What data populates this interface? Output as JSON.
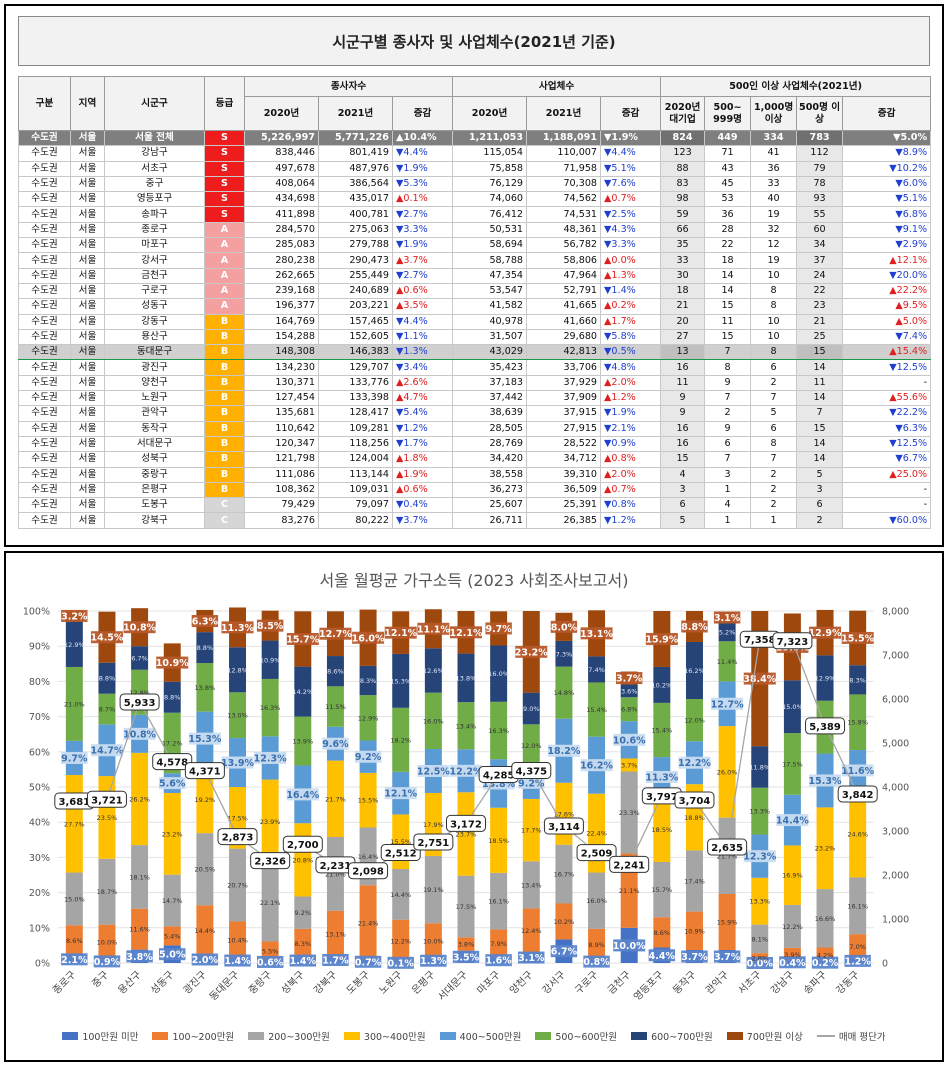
{
  "table": {
    "title": "시군구별 종사자 및 사업체수(2021년 기준)",
    "headers": {
      "region": "구분",
      "area": "지역",
      "district": "시군구",
      "grade": "등급",
      "workers": "종사자수",
      "businesses": "사업체수",
      "large": "500인 이상 사업체수(2021년)",
      "y2020": "2020년",
      "y2021": "2021년",
      "change": "증감",
      "large_2020": "2020년 대기업",
      "large_500": "500~ 999명",
      "large_1000": "1,000명 이상",
      "large_500plus": "500명 이상",
      "large_change": "증감"
    },
    "grade_colors": {
      "S": "#ee1c1c",
      "A": "#f4a0a0",
      "B": "#ffb000",
      "C": "#d6d6d6"
    },
    "rows": [
      {
        "region": "수도권",
        "area": "서울",
        "district": "서울 전체",
        "grade": "S",
        "w2020": "5,226,997",
        "w2021": "5,771,226",
        "wchg": "▲10.4%",
        "wdir": "up",
        "b2020": "1,211,053",
        "b2021": "1,188,091",
        "bchg": "▼1.9%",
        "bdir": "dn",
        "l2020": "824",
        "l500": "449",
        "l1000": "334",
        "l500p": "783",
        "lchg": "▼5.0%",
        "ldir": "dn",
        "total": true
      },
      {
        "region": "수도권",
        "area": "서울",
        "district": "강남구",
        "grade": "S",
        "w2020": "838,446",
        "w2021": "801,419",
        "wchg": "▼4.4%",
        "wdir": "dn",
        "b2020": "115,054",
        "b2021": "110,007",
        "bchg": "▼4.4%",
        "bdir": "dn",
        "l2020": "123",
        "l500": "71",
        "l1000": "41",
        "l500p": "112",
        "lchg": "▼8.9%",
        "ldir": "dn"
      },
      {
        "region": "수도권",
        "area": "서울",
        "district": "서초구",
        "grade": "S",
        "w2020": "497,678",
        "w2021": "487,976",
        "wchg": "▼1.9%",
        "wdir": "dn",
        "b2020": "75,858",
        "b2021": "71,958",
        "bchg": "▼5.1%",
        "bdir": "dn",
        "l2020": "88",
        "l500": "43",
        "l1000": "36",
        "l500p": "79",
        "lchg": "▼10.2%",
        "ldir": "dn"
      },
      {
        "region": "수도권",
        "area": "서울",
        "district": "중구",
        "grade": "S",
        "w2020": "408,064",
        "w2021": "386,564",
        "wchg": "▼5.3%",
        "wdir": "dn",
        "b2020": "76,129",
        "b2021": "70,308",
        "bchg": "▼7.6%",
        "bdir": "dn",
        "l2020": "83",
        "l500": "45",
        "l1000": "33",
        "l500p": "78",
        "lchg": "▼6.0%",
        "ldir": "dn"
      },
      {
        "region": "수도권",
        "area": "서울",
        "district": "영등포구",
        "grade": "S",
        "w2020": "434,698",
        "w2021": "435,017",
        "wchg": "▲0.1%",
        "wdir": "up",
        "b2020": "74,060",
        "b2021": "74,562",
        "bchg": "▲0.7%",
        "bdir": "up",
        "l2020": "98",
        "l500": "53",
        "l1000": "40",
        "l500p": "93",
        "lchg": "▼5.1%",
        "ldir": "dn"
      },
      {
        "region": "수도권",
        "area": "서울",
        "district": "송파구",
        "grade": "S",
        "w2020": "411,898",
        "w2021": "400,781",
        "wchg": "▼2.7%",
        "wdir": "dn",
        "b2020": "76,412",
        "b2021": "74,531",
        "bchg": "▼2.5%",
        "bdir": "dn",
        "l2020": "59",
        "l500": "36",
        "l1000": "19",
        "l500p": "55",
        "lchg": "▼6.8%",
        "ldir": "dn"
      },
      {
        "region": "수도권",
        "area": "서울",
        "district": "종로구",
        "grade": "A",
        "w2020": "284,570",
        "w2021": "275,063",
        "wchg": "▼3.3%",
        "wdir": "dn",
        "b2020": "50,531",
        "b2021": "48,361",
        "bchg": "▼4.3%",
        "bdir": "dn",
        "l2020": "66",
        "l500": "28",
        "l1000": "32",
        "l500p": "60",
        "lchg": "▼9.1%",
        "ldir": "dn"
      },
      {
        "region": "수도권",
        "area": "서울",
        "district": "마포구",
        "grade": "A",
        "w2020": "285,083",
        "w2021": "279,788",
        "wchg": "▼1.9%",
        "wdir": "dn",
        "b2020": "58,694",
        "b2021": "56,782",
        "bchg": "▼3.3%",
        "bdir": "dn",
        "l2020": "35",
        "l500": "22",
        "l1000": "12",
        "l500p": "34",
        "lchg": "▼2.9%",
        "ldir": "dn"
      },
      {
        "region": "수도권",
        "area": "서울",
        "district": "강서구",
        "grade": "A",
        "w2020": "280,238",
        "w2021": "290,473",
        "wchg": "▲3.7%",
        "wdir": "up",
        "b2020": "58,788",
        "b2021": "58,806",
        "bchg": "▲0.0%",
        "bdir": "up",
        "l2020": "33",
        "l500": "18",
        "l1000": "19",
        "l500p": "37",
        "lchg": "▲12.1%",
        "ldir": "up"
      },
      {
        "region": "수도권",
        "area": "서울",
        "district": "금천구",
        "grade": "A",
        "w2020": "262,665",
        "w2021": "255,449",
        "wchg": "▼2.7%",
        "wdir": "dn",
        "b2020": "47,354",
        "b2021": "47,964",
        "bchg": "▲1.3%",
        "bdir": "up",
        "l2020": "30",
        "l500": "14",
        "l1000": "10",
        "l500p": "24",
        "lchg": "▼20.0%",
        "ldir": "dn"
      },
      {
        "region": "수도권",
        "area": "서울",
        "district": "구로구",
        "grade": "A",
        "w2020": "239,168",
        "w2021": "240,689",
        "wchg": "▲0.6%",
        "wdir": "up",
        "b2020": "53,547",
        "b2021": "52,791",
        "bchg": "▼1.4%",
        "bdir": "dn",
        "l2020": "18",
        "l500": "14",
        "l1000": "8",
        "l500p": "22",
        "lchg": "▲22.2%",
        "ldir": "up"
      },
      {
        "region": "수도권",
        "area": "서울",
        "district": "성동구",
        "grade": "A",
        "w2020": "196,377",
        "w2021": "203,221",
        "wchg": "▲3.5%",
        "wdir": "up",
        "b2020": "41,582",
        "b2021": "41,665",
        "bchg": "▲0.2%",
        "bdir": "up",
        "l2020": "21",
        "l500": "15",
        "l1000": "8",
        "l500p": "23",
        "lchg": "▲9.5%",
        "ldir": "up"
      },
      {
        "region": "수도권",
        "area": "서울",
        "district": "강동구",
        "grade": "B",
        "w2020": "164,769",
        "w2021": "157,465",
        "wchg": "▼4.4%",
        "wdir": "dn",
        "b2020": "40,978",
        "b2021": "41,660",
        "bchg": "▲1.7%",
        "bdir": "up",
        "l2020": "20",
        "l500": "11",
        "l1000": "10",
        "l500p": "21",
        "lchg": "▲5.0%",
        "ldir": "up"
      },
      {
        "region": "수도권",
        "area": "서울",
        "district": "용산구",
        "grade": "B",
        "w2020": "154,288",
        "w2021": "152,605",
        "wchg": "▼1.1%",
        "wdir": "dn",
        "b2020": "31,507",
        "b2021": "29,680",
        "bchg": "▼5.8%",
        "bdir": "dn",
        "l2020": "27",
        "l500": "15",
        "l1000": "10",
        "l500p": "25",
        "lchg": "▼7.4%",
        "ldir": "dn"
      },
      {
        "region": "수도권",
        "area": "서울",
        "district": "동대문구",
        "grade": "B",
        "w2020": "148,308",
        "w2021": "146,383",
        "wchg": "▼1.3%",
        "wdir": "dn",
        "b2020": "43,029",
        "b2021": "42,813",
        "bchg": "▼0.5%",
        "bdir": "dn",
        "l2020": "13",
        "l500": "7",
        "l1000": "8",
        "l500p": "15",
        "lchg": "▲15.4%",
        "ldir": "up",
        "highlight": true
      },
      {
        "region": "수도권",
        "area": "서울",
        "district": "광진구",
        "grade": "B",
        "w2020": "134,230",
        "w2021": "129,707",
        "wchg": "▼3.4%",
        "wdir": "dn",
        "b2020": "35,423",
        "b2021": "33,706",
        "bchg": "▼4.8%",
        "bdir": "dn",
        "l2020": "16",
        "l500": "8",
        "l1000": "6",
        "l500p": "14",
        "lchg": "▼12.5%",
        "ldir": "dn"
      },
      {
        "region": "수도권",
        "area": "서울",
        "district": "양천구",
        "grade": "B",
        "w2020": "130,371",
        "w2021": "133,776",
        "wchg": "▲2.6%",
        "wdir": "up",
        "b2020": "37,183",
        "b2021": "37,929",
        "bchg": "▲2.0%",
        "bdir": "up",
        "l2020": "11",
        "l500": "9",
        "l1000": "2",
        "l500p": "11",
        "lchg": "-",
        "ldir": ""
      },
      {
        "region": "수도권",
        "area": "서울",
        "district": "노원구",
        "grade": "B",
        "w2020": "127,454",
        "w2021": "133,398",
        "wchg": "▲4.7%",
        "wdir": "up",
        "b2020": "37,442",
        "b2021": "37,909",
        "bchg": "▲1.2%",
        "bdir": "up",
        "l2020": "9",
        "l500": "7",
        "l1000": "7",
        "l500p": "14",
        "lchg": "▲55.6%",
        "ldir": "up"
      },
      {
        "region": "수도권",
        "area": "서울",
        "district": "관악구",
        "grade": "B",
        "w2020": "135,681",
        "w2021": "128,417",
        "wchg": "▼5.4%",
        "wdir": "dn",
        "b2020": "38,639",
        "b2021": "37,915",
        "bchg": "▼1.9%",
        "bdir": "dn",
        "l2020": "9",
        "l500": "2",
        "l1000": "5",
        "l500p": "7",
        "lchg": "▼22.2%",
        "ldir": "dn"
      },
      {
        "region": "수도권",
        "area": "서울",
        "district": "동작구",
        "grade": "B",
        "w2020": "110,642",
        "w2021": "109,281",
        "wchg": "▼1.2%",
        "wdir": "dn",
        "b2020": "28,505",
        "b2021": "27,915",
        "bchg": "▼2.1%",
        "bdir": "dn",
        "l2020": "16",
        "l500": "9",
        "l1000": "6",
        "l500p": "15",
        "lchg": "▼6.3%",
        "ldir": "dn"
      },
      {
        "region": "수도권",
        "area": "서울",
        "district": "서대문구",
        "grade": "B",
        "w2020": "120,347",
        "w2021": "118,256",
        "wchg": "▼1.7%",
        "wdir": "dn",
        "b2020": "28,769",
        "b2021": "28,522",
        "bchg": "▼0.9%",
        "bdir": "dn",
        "l2020": "16",
        "l500": "6",
        "l1000": "8",
        "l500p": "14",
        "lchg": "▼12.5%",
        "ldir": "dn"
      },
      {
        "region": "수도권",
        "area": "서울",
        "district": "성북구",
        "grade": "B",
        "w2020": "121,798",
        "w2021": "124,004",
        "wchg": "▲1.8%",
        "wdir": "up",
        "b2020": "34,420",
        "b2021": "34,712",
        "bchg": "▲0.8%",
        "bdir": "up",
        "l2020": "15",
        "l500": "7",
        "l1000": "7",
        "l500p": "14",
        "lchg": "▼6.7%",
        "ldir": "dn"
      },
      {
        "region": "수도권",
        "area": "서울",
        "district": "중랑구",
        "grade": "B",
        "w2020": "111,086",
        "w2021": "113,144",
        "wchg": "▲1.9%",
        "wdir": "up",
        "b2020": "38,558",
        "b2021": "39,310",
        "bchg": "▲2.0%",
        "bdir": "up",
        "l2020": "4",
        "l500": "3",
        "l1000": "2",
        "l500p": "5",
        "lchg": "▲25.0%",
        "ldir": "up"
      },
      {
        "region": "수도권",
        "area": "서울",
        "district": "은평구",
        "grade": "B",
        "w2020": "108,362",
        "w2021": "109,031",
        "wchg": "▲0.6%",
        "wdir": "up",
        "b2020": "36,273",
        "b2021": "36,509",
        "bchg": "▲0.7%",
        "bdir": "up",
        "l2020": "3",
        "l500": "1",
        "l1000": "2",
        "l500p": "3",
        "lchg": "-",
        "ldir": ""
      },
      {
        "region": "수도권",
        "area": "서울",
        "district": "도봉구",
        "grade": "C",
        "w2020": "79,429",
        "w2021": "79,097",
        "wchg": "▼0.4%",
        "wdir": "dn",
        "b2020": "25,607",
        "b2021": "25,391",
        "bchg": "▼0.8%",
        "bdir": "dn",
        "l2020": "6",
        "l500": "4",
        "l1000": "2",
        "l500p": "6",
        "lchg": "-",
        "ldir": ""
      },
      {
        "region": "수도권",
        "area": "서울",
        "district": "강북구",
        "grade": "C",
        "w2020": "83,276",
        "w2021": "80,222",
        "wchg": "▼3.7%",
        "wdir": "dn",
        "b2020": "26,711",
        "b2021": "26,385",
        "bchg": "▼1.2%",
        "bdir": "dn",
        "l2020": "5",
        "l500": "1",
        "l1000": "1",
        "l500p": "2",
        "lchg": "▼60.0%",
        "ldir": "dn"
      }
    ]
  },
  "chart_data": {
    "type": "bar",
    "stacked": true,
    "title": "서울 월평균 가구소득 (2023 사회조사보고서)",
    "y_left": {
      "min": 0,
      "max": 100,
      "unit": "%",
      "ticks": [
        "0%",
        "10%",
        "20%",
        "30%",
        "40%",
        "50%",
        "60%",
        "70%",
        "80%",
        "90%",
        "100%"
      ]
    },
    "y_right": {
      "min": 0,
      "max": 8000,
      "ticks": [
        "0",
        "1,000",
        "2,000",
        "3,000",
        "4,000",
        "5,000",
        "6,000",
        "7,000",
        "8,000"
      ]
    },
    "legend_position": "bottom",
    "categories": [
      "종로구",
      "중구",
      "용산구",
      "성동구",
      "광진구",
      "동대문구",
      "중랑구",
      "성북구",
      "강북구",
      "도봉구",
      "노원구",
      "은평구",
      "서대문구",
      "마포구",
      "양천구",
      "강서구",
      "구로구",
      "금천구",
      "영등포구",
      "동작구",
      "관악구",
      "서초구",
      "강남구",
      "송파구",
      "강동구"
    ],
    "series": [
      {
        "name": "100만원 미만",
        "color": "#4472c4",
        "values": [
          2.1,
          0.9,
          3.8,
          5.0,
          2.0,
          1.4,
          0.6,
          1.4,
          1.7,
          0.7,
          0.1,
          1.3,
          3.5,
          1.6,
          3.1,
          6.7,
          0.8,
          10.0,
          4.4,
          3.7,
          3.7,
          0.0,
          0.4,
          0.2,
          1.2
        ]
      },
      {
        "name": "100~200만원",
        "color": "#ed7d31",
        "values": [
          8.6,
          10.0,
          11.6,
          5.4,
          14.4,
          10.4,
          5.5,
          8.3,
          13.1,
          21.4,
          12.2,
          10.0,
          3.8,
          7.9,
          12.4,
          10.2,
          8.9,
          21.1,
          8.6,
          10.9,
          15.9,
          2.8,
          3.9,
          4.2,
          7.0
        ]
      },
      {
        "name": "200~300만원",
        "color": "#a5a5a5",
        "values": [
          15.0,
          18.7,
          18.1,
          14.7,
          20.5,
          20.7,
          22.1,
          9.2,
          21.0,
          16.4,
          14.4,
          19.1,
          17.5,
          16.1,
          13.4,
          16.7,
          16.0,
          23.3,
          15.7,
          17.4,
          21.7,
          8.1,
          12.2,
          16.6,
          16.1
        ]
      },
      {
        "name": "300~400만원",
        "color": "#ffc000",
        "values": [
          27.7,
          23.5,
          26.2,
          23.2,
          19.2,
          17.5,
          23.9,
          20.8,
          21.7,
          15.5,
          15.5,
          17.9,
          23.7,
          18.5,
          17.7,
          17.6,
          22.4,
          3.7,
          18.5,
          18.8,
          26.0,
          13.3,
          16.9,
          23.2,
          24.6
        ]
      },
      {
        "name": "400~500만원",
        "color": "#5b9bd5",
        "values": [
          9.7,
          14.7,
          10.8,
          5.6,
          15.3,
          13.9,
          12.3,
          16.4,
          9.6,
          9.2,
          12.1,
          12.5,
          12.2,
          13.8,
          9.2,
          18.2,
          16.2,
          10.6,
          11.3,
          12.2,
          12.7,
          12.3,
          14.4,
          15.3,
          11.6
        ]
      },
      {
        "name": "500~600만원",
        "color": "#70ad47",
        "values": [
          21.0,
          8.7,
          12.8,
          17.2,
          13.8,
          13.0,
          16.3,
          13.9,
          11.5,
          12.9,
          18.2,
          16.0,
          13.4,
          16.3,
          12.0,
          14.8,
          15.4,
          6.8,
          15.4,
          12.0,
          11.4,
          13.3,
          17.5,
          15.0,
          15.8
        ]
      },
      {
        "name": "600~700만원",
        "color": "#264478",
        "values": [
          12.9,
          8.8,
          6.7,
          8.8,
          8.8,
          12.8,
          10.9,
          14.2,
          8.6,
          8.3,
          15.3,
          12.6,
          13.8,
          16.0,
          9.0,
          7.3,
          7.4,
          3.6,
          10.2,
          16.2,
          5.2,
          11.8,
          15.0,
          12.9,
          8.3
        ]
      },
      {
        "name": "700만원 이상",
        "color": "#9e480e",
        "values": [
          3.2,
          14.5,
          10.8,
          10.9,
          6.3,
          11.3,
          8.5,
          15.7,
          12.7,
          16.0,
          12.1,
          11.1,
          12.1,
          9.7,
          23.2,
          8.0,
          13.1,
          3.7,
          15.9,
          8.8,
          3.1,
          38.4,
          19.0,
          12.9,
          15.5
        ]
      }
    ],
    "line": {
      "name": "매매 평단가",
      "color": "#a6a6a6",
      "values": [
        3681,
        3721,
        5933,
        4578,
        4371,
        2873,
        2326,
        2700,
        2231,
        2098,
        2512,
        2751,
        3172,
        4285,
        4375,
        3114,
        2509,
        2241,
        3797,
        3704,
        2635,
        7358,
        7323,
        5389,
        3842
      ],
      "labels": [
        "3,681",
        "3,721",
        "5,933",
        "4,578",
        "4,371",
        "2,873",
        "2,326",
        "2,700",
        "2,231",
        "2,098",
        "2,512",
        "2,751",
        "3,172",
        "4,285",
        "4,375",
        "3,114",
        "2,509",
        "2,241",
        "3,797",
        "3,704",
        "2,635",
        "7,358",
        "7,323",
        "5,389",
        "3,842"
      ]
    }
  }
}
